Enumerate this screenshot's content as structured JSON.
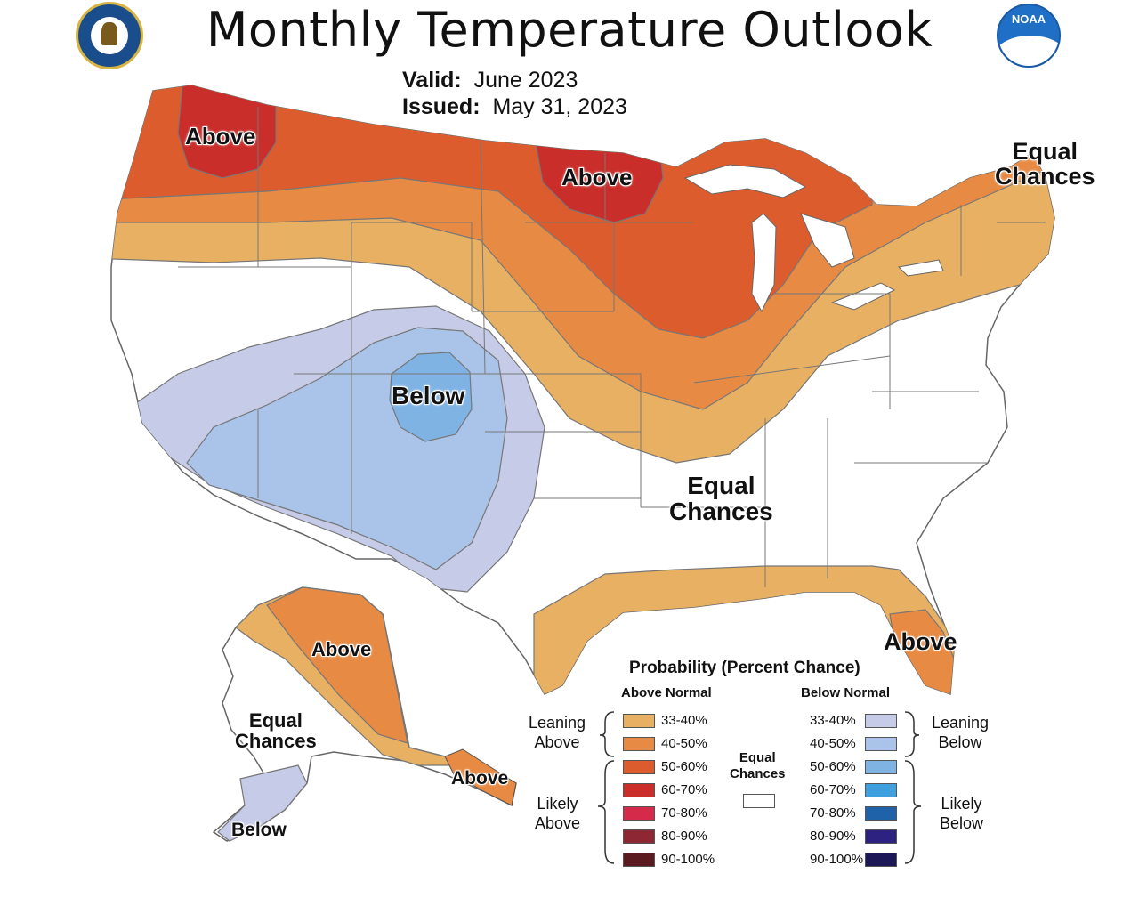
{
  "title": "Monthly Temperature Outlook",
  "valid_label": "Valid:",
  "valid_value": "June 2023",
  "issued_label": "Issued:",
  "issued_value": "May 31, 2023",
  "colors": {
    "above_33_40": "#e8b062",
    "above_40_50": "#e78a43",
    "above_50_60": "#dc5c2e",
    "above_60_70": "#c92e2b",
    "above_70_80": "#d62a4a",
    "above_80_90": "#8c2733",
    "above_90_100": "#5a1a20",
    "below_33_40": "#c6cbe8",
    "below_40_50": "#a9c4e8",
    "below_50_60": "#7fb3e4",
    "below_60_70": "#3ea0de",
    "below_70_80": "#1f62aa",
    "below_80_90": "#2e2281",
    "below_90_100": "#1c1756"
  },
  "map_labels": {
    "nw_above": "Above",
    "mn_above": "Above",
    "ne_ec_1": "Equal",
    "ne_ec_2": "Chances",
    "sw_below": "Below",
    "se_ec_1": "Equal",
    "se_ec_2": "Chances",
    "fl_above": "Above",
    "ak_above": "Above",
    "ak_ec_1": "Equal",
    "ak_ec_2": "Chances",
    "ak_se_above": "Above",
    "ak_below": "Below"
  },
  "legend": {
    "title": "Probability (Percent Chance)",
    "above_header": "Above Normal",
    "below_header": "Below Normal",
    "ec_1": "Equal",
    "ec_2": "Chances",
    "leaning_above_1": "Leaning",
    "leaning_above_2": "Above",
    "likely_above_1": "Likely",
    "likely_above_2": "Above",
    "leaning_below_1": "Leaning",
    "leaning_below_2": "Below",
    "likely_below_1": "Likely",
    "likely_below_2": "Below",
    "above_rows": [
      "33-40%",
      "40-50%",
      "50-60%",
      "60-70%",
      "70-80%",
      "80-90%",
      "90-100%"
    ],
    "below_rows": [
      "33-40%",
      "40-50%",
      "50-60%",
      "60-70%",
      "70-80%",
      "80-90%",
      "90-100%"
    ]
  }
}
